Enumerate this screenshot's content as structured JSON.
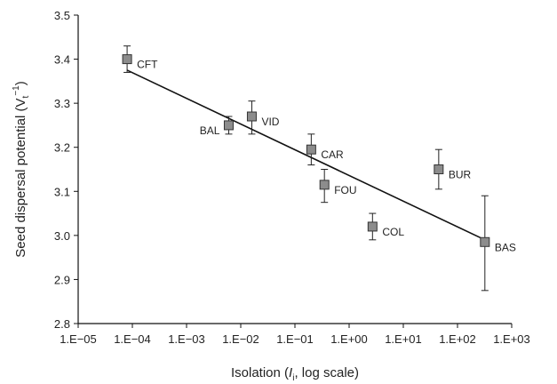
{
  "chart_data": {
    "type": "scatter",
    "xscale": "log",
    "xlim": [
      1e-05,
      1000
    ],
    "ylim": [
      2.8,
      3.5
    ],
    "x_ticks": [
      {
        "value": 1e-05,
        "label": "1.E−05"
      },
      {
        "value": 0.0001,
        "label": "1.E−04"
      },
      {
        "value": 0.001,
        "label": "1.E−03"
      },
      {
        "value": 0.01,
        "label": "1.E−02"
      },
      {
        "value": 0.1,
        "label": "1.E−01"
      },
      {
        "value": 1,
        "label": "1.E+00"
      },
      {
        "value": 10,
        "label": "1.E+01"
      },
      {
        "value": 100,
        "label": "1.E+02"
      },
      {
        "value": 1000,
        "label": "1.E+03"
      }
    ],
    "y_ticks": [
      {
        "value": 2.8,
        "label": "2.8"
      },
      {
        "value": 2.9,
        "label": "2.9"
      },
      {
        "value": 3.0,
        "label": "3.0"
      },
      {
        "value": 3.1,
        "label": "3.1"
      },
      {
        "value": 3.2,
        "label": "3.2"
      },
      {
        "value": 3.3,
        "label": "3.3"
      },
      {
        "value": 3.4,
        "label": "3.4"
      },
      {
        "value": 3.5,
        "label": "3.5"
      }
    ],
    "xlabel": {
      "pre": "Isolation (",
      "italic": "I",
      "sub": "i",
      "post": ", log scale)"
    },
    "ylabel": {
      "pre": "Seed dispersal potential (V",
      "sub": "t",
      "sup": "−1",
      "post": ")"
    },
    "points": [
      {
        "label": "CFT",
        "x": 8e-05,
        "y": 3.4,
        "err_low": 0.03,
        "err_high": 0.03,
        "label_pos": "right"
      },
      {
        "label": "BAL",
        "x": 0.006,
        "y": 3.25,
        "err_low": 0.02,
        "err_high": 0.02,
        "label_pos": "left"
      },
      {
        "label": "VID",
        "x": 0.016,
        "y": 3.27,
        "err_low": 0.04,
        "err_high": 0.035,
        "label_pos": "right"
      },
      {
        "label": "CAR",
        "x": 0.2,
        "y": 3.195,
        "err_low": 0.035,
        "err_high": 0.035,
        "label_pos": "right"
      },
      {
        "label": "FOU",
        "x": 0.35,
        "y": 3.115,
        "err_low": 0.04,
        "err_high": 0.035,
        "label_pos": "right"
      },
      {
        "label": "COL",
        "x": 2.7,
        "y": 3.02,
        "err_low": 0.03,
        "err_high": 0.03,
        "label_pos": "right"
      },
      {
        "label": "BUR",
        "x": 45,
        "y": 3.15,
        "err_low": 0.045,
        "err_high": 0.045,
        "label_pos": "right"
      },
      {
        "label": "BAS",
        "x": 320,
        "y": 2.985,
        "err_low": 0.11,
        "err_high": 0.105,
        "label_pos": "right"
      }
    ],
    "trendline": {
      "x": [
        8e-05,
        320
      ],
      "y": [
        3.375,
        2.99
      ]
    },
    "marker_color": "#8c8c8c",
    "marker_stroke": "#333333",
    "line_color": "#111111",
    "grid": false,
    "legend": "none"
  }
}
